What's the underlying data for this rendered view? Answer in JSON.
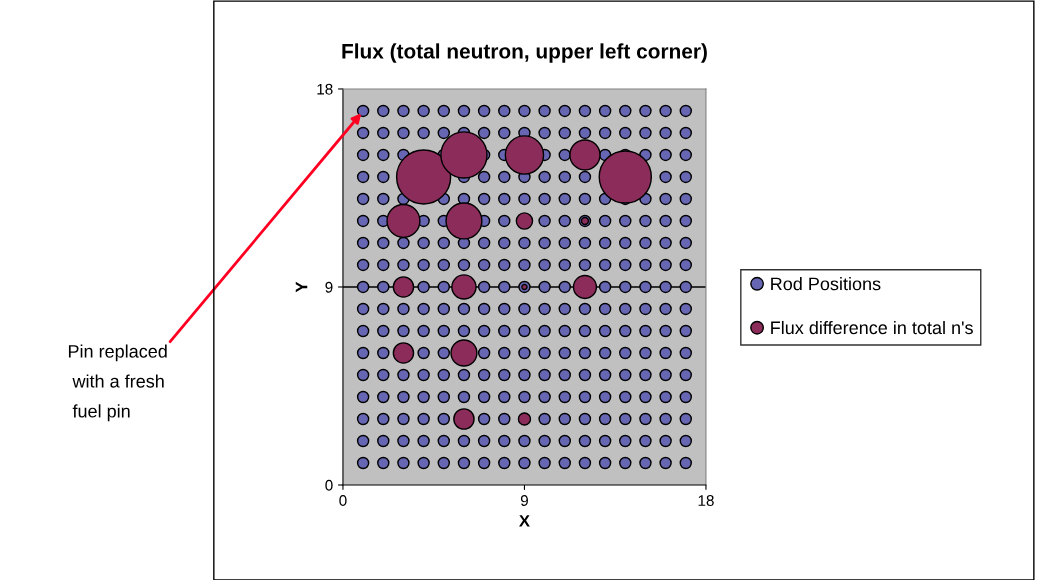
{
  "chart_data": {
    "type": "bubble",
    "title": "Flux (total neutron, upper left corner)",
    "xlabel": "X",
    "ylabel": "Y",
    "xlim": [
      0,
      18
    ],
    "xticks": [
      0,
      9,
      18
    ],
    "ylim": [
      0,
      18
    ],
    "yticks": [
      0,
      9,
      18
    ],
    "grid": false,
    "legend": "right",
    "marker": "circle",
    "ref_lines": [
      {
        "axis": "y",
        "value": 9,
        "color": "#000000"
      }
    ],
    "annotations": [
      {
        "text": "Pin replaced\n with a fresh\n fuel pin",
        "x": 1,
        "y": 17
      }
    ],
    "series": [
      {
        "name": "Rod Positions",
        "type": "scatter",
        "color": "#6666b3",
        "x": [
          1,
          2,
          3,
          4,
          5,
          6,
          7,
          8,
          9,
          10,
          11,
          12,
          13,
          14,
          15,
          16,
          17,
          1,
          2,
          3,
          4,
          5,
          6,
          7,
          8,
          9,
          10,
          11,
          12,
          13,
          14,
          15,
          16,
          17,
          1,
          2,
          3,
          4,
          5,
          6,
          7,
          8,
          9,
          10,
          11,
          12,
          13,
          14,
          15,
          16,
          17,
          1,
          2,
          3,
          4,
          5,
          6,
          7,
          8,
          9,
          10,
          11,
          12,
          13,
          14,
          15,
          16,
          17,
          1,
          2,
          3,
          4,
          5,
          6,
          7,
          8,
          9,
          10,
          11,
          12,
          13,
          14,
          15,
          16,
          17,
          1,
          2,
          3,
          4,
          5,
          6,
          7,
          8,
          9,
          10,
          11,
          12,
          13,
          14,
          15,
          16,
          17,
          1,
          2,
          3,
          4,
          5,
          6,
          7,
          8,
          9,
          10,
          11,
          12,
          13,
          14,
          15,
          16,
          17,
          1,
          2,
          3,
          4,
          5,
          6,
          7,
          8,
          9,
          10,
          11,
          12,
          13,
          14,
          15,
          16,
          17,
          1,
          2,
          3,
          4,
          5,
          6,
          7,
          8,
          9,
          10,
          11,
          12,
          13,
          14,
          15,
          16,
          17,
          1,
          2,
          3,
          4,
          5,
          6,
          7,
          8,
          9,
          10,
          11,
          12,
          13,
          14,
          15,
          16,
          17,
          1,
          2,
          3,
          4,
          5,
          6,
          7,
          8,
          9,
          10,
          11,
          12,
          13,
          14,
          15,
          16,
          17,
          1,
          2,
          3,
          4,
          5,
          6,
          7,
          8,
          9,
          10,
          11,
          12,
          13,
          14,
          15,
          16,
          17,
          1,
          2,
          3,
          4,
          5,
          6,
          7,
          8,
          9,
          10,
          11,
          12,
          13,
          14,
          15,
          16,
          17,
          1,
          2,
          3,
          4,
          5,
          6,
          7,
          8,
          9,
          10,
          11,
          12,
          13,
          14,
          15,
          16,
          17,
          1,
          2,
          3,
          4,
          5,
          6,
          7,
          8,
          9,
          10,
          11,
          12,
          13,
          14,
          15,
          16,
          17,
          1,
          2,
          3,
          4,
          5,
          6,
          7,
          8,
          9,
          10,
          11,
          12,
          13,
          14,
          15,
          16,
          17,
          1,
          2,
          3,
          4,
          5,
          6,
          7,
          8,
          9,
          10,
          11,
          12,
          13,
          14,
          15,
          16,
          17
        ],
        "values": [
          1,
          1,
          1,
          1,
          1,
          1,
          1,
          1,
          1,
          1,
          1,
          1,
          1,
          1,
          1,
          1,
          1,
          2,
          2,
          2,
          2,
          2,
          2,
          2,
          2,
          2,
          2,
          2,
          2,
          2,
          2,
          2,
          2,
          2,
          3,
          3,
          3,
          3,
          3,
          null,
          3,
          3,
          3,
          3,
          3,
          3,
          3,
          3,
          3,
          3,
          3,
          4,
          4,
          4,
          4,
          4,
          4,
          4,
          4,
          4,
          4,
          4,
          4,
          4,
          4,
          4,
          4,
          4,
          5,
          5,
          5,
          5,
          5,
          5,
          5,
          5,
          5,
          5,
          5,
          5,
          5,
          5,
          5,
          5,
          5,
          6,
          6,
          null,
          6,
          6,
          null,
          6,
          6,
          6,
          6,
          6,
          6,
          6,
          6,
          6,
          6,
          6,
          7,
          7,
          7,
          7,
          7,
          7,
          7,
          7,
          7,
          7,
          7,
          7,
          7,
          7,
          7,
          7,
          7,
          8,
          8,
          8,
          8,
          8,
          8,
          8,
          8,
          8,
          8,
          8,
          8,
          8,
          8,
          8,
          8,
          8,
          9,
          9,
          null,
          9,
          9,
          null,
          9,
          9,
          9,
          9,
          9,
          null,
          9,
          9,
          9,
          9,
          9,
          10,
          10,
          10,
          10,
          10,
          10,
          10,
          10,
          10,
          10,
          10,
          10,
          10,
          10,
          10,
          10,
          10,
          11,
          11,
          11,
          11,
          11,
          11,
          11,
          11,
          11,
          11,
          11,
          11,
          11,
          11,
          11,
          11,
          11,
          12,
          12,
          null,
          12,
          12,
          null,
          12,
          12,
          null,
          12,
          12,
          12,
          12,
          12,
          12,
          12,
          12,
          13,
          13,
          13,
          null,
          13,
          13,
          13,
          13,
          13,
          13,
          13,
          13,
          13,
          13,
          13,
          13,
          13,
          14,
          14,
          null,
          null,
          null,
          14,
          14,
          14,
          14,
          14,
          14,
          14,
          null,
          null,
          null,
          14,
          14,
          15,
          15,
          15,
          null,
          15,
          null,
          15,
          15,
          null,
          15,
          15,
          null,
          15,
          15,
          15,
          15,
          15,
          16,
          16,
          16,
          16,
          16,
          16,
          16,
          16,
          16,
          16,
          16,
          16,
          16,
          16,
          16,
          16,
          16,
          17,
          17,
          17,
          17,
          17,
          17,
          17,
          17,
          17,
          17,
          17,
          17,
          17,
          17,
          17,
          17,
          17
        ]
      },
      {
        "name": "Flux difference in total n's",
        "type": "bubble",
        "color": "#8b2c5a",
        "x": [
          4,
          14,
          6,
          9,
          12,
          3,
          6,
          9,
          12,
          3,
          6,
          9,
          12,
          3,
          6,
          6,
          9
        ],
        "values": [
          14,
          14,
          15,
          15,
          15,
          12,
          12,
          12,
          12,
          9,
          9,
          9,
          9,
          6,
          6,
          3,
          3
        ],
        "sizes": [
          1,
          0.93,
          0.73,
          0.5,
          0.31,
          0.37,
          0.44,
          0.09,
          0.017,
          0.14,
          0.2,
          0.009,
          0.18,
          0.14,
          0.23,
          0.14,
          0.05
        ]
      }
    ]
  }
}
